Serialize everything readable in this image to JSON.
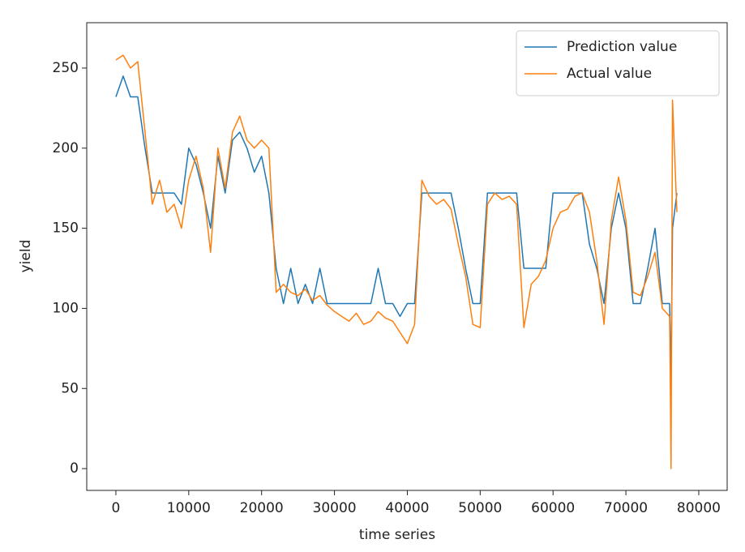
{
  "chart_data": {
    "type": "line",
    "x_label": "time series",
    "y_label": "yield",
    "x": [
      0,
      1000,
      2000,
      3000,
      4000,
      5000,
      6000,
      7000,
      8000,
      9000,
      10000,
      11000,
      12000,
      13000,
      14000,
      15000,
      16000,
      17000,
      18000,
      19000,
      20000,
      21000,
      22000,
      23000,
      24000,
      25000,
      26000,
      27000,
      28000,
      29000,
      30000,
      31000,
      32000,
      33000,
      34000,
      35000,
      36000,
      37000,
      38000,
      39000,
      40000,
      41000,
      42000,
      43000,
      44000,
      45000,
      46000,
      47000,
      48000,
      49000,
      50000,
      51000,
      52000,
      53000,
      54000,
      55000,
      56000,
      57000,
      58000,
      59000,
      60000,
      61000,
      62000,
      63000,
      64000,
      65000,
      66000,
      67000,
      68000,
      69000,
      70000,
      71000,
      72000,
      73000,
      74000,
      75000,
      76000,
      76200,
      76400,
      77000
    ],
    "series": [
      {
        "name": "Prediction value",
        "color": "#1f77b4",
        "values": [
          232,
          245,
          232,
          232,
          200,
          172,
          172,
          172,
          172,
          165,
          200,
          190,
          172,
          150,
          195,
          172,
          205,
          210,
          200,
          185,
          195,
          172,
          125,
          103,
          125,
          103,
          115,
          103,
          125,
          103,
          103,
          103,
          103,
          103,
          103,
          103,
          125,
          103,
          103,
          95,
          103,
          103,
          172,
          172,
          172,
          172,
          172,
          150,
          125,
          103,
          103,
          172,
          172,
          172,
          172,
          172,
          125,
          125,
          125,
          125,
          172,
          172,
          172,
          172,
          172,
          140,
          125,
          103,
          150,
          172,
          150,
          103,
          103,
          125,
          150,
          103,
          103,
          55,
          150,
          172
        ]
      },
      {
        "name": "Actual value",
        "color": "#ff7f0e",
        "values": [
          255,
          258,
          250,
          254,
          210,
          165,
          180,
          160,
          165,
          150,
          180,
          195,
          175,
          135,
          200,
          175,
          210,
          220,
          205,
          200,
          205,
          200,
          110,
          115,
          110,
          108,
          112,
          105,
          108,
          102,
          98,
          95,
          92,
          97,
          90,
          92,
          98,
          94,
          92,
          85,
          78,
          90,
          180,
          170,
          165,
          168,
          162,
          140,
          120,
          90,
          88,
          165,
          172,
          168,
          170,
          165,
          88,
          115,
          120,
          130,
          150,
          160,
          162,
          170,
          172,
          160,
          130,
          90,
          155,
          182,
          155,
          110,
          108,
          120,
          135,
          100,
          95,
          0,
          230,
          160
        ]
      }
    ],
    "xlim": [
      -4000,
      83900
    ],
    "ylim": [
      -13.6,
      278.3
    ],
    "xticks": [
      0,
      10000,
      20000,
      30000,
      40000,
      50000,
      60000,
      70000,
      80000
    ],
    "yticks": [
      0,
      50,
      100,
      150,
      200,
      250
    ],
    "grid": false,
    "legend": "upper right"
  }
}
